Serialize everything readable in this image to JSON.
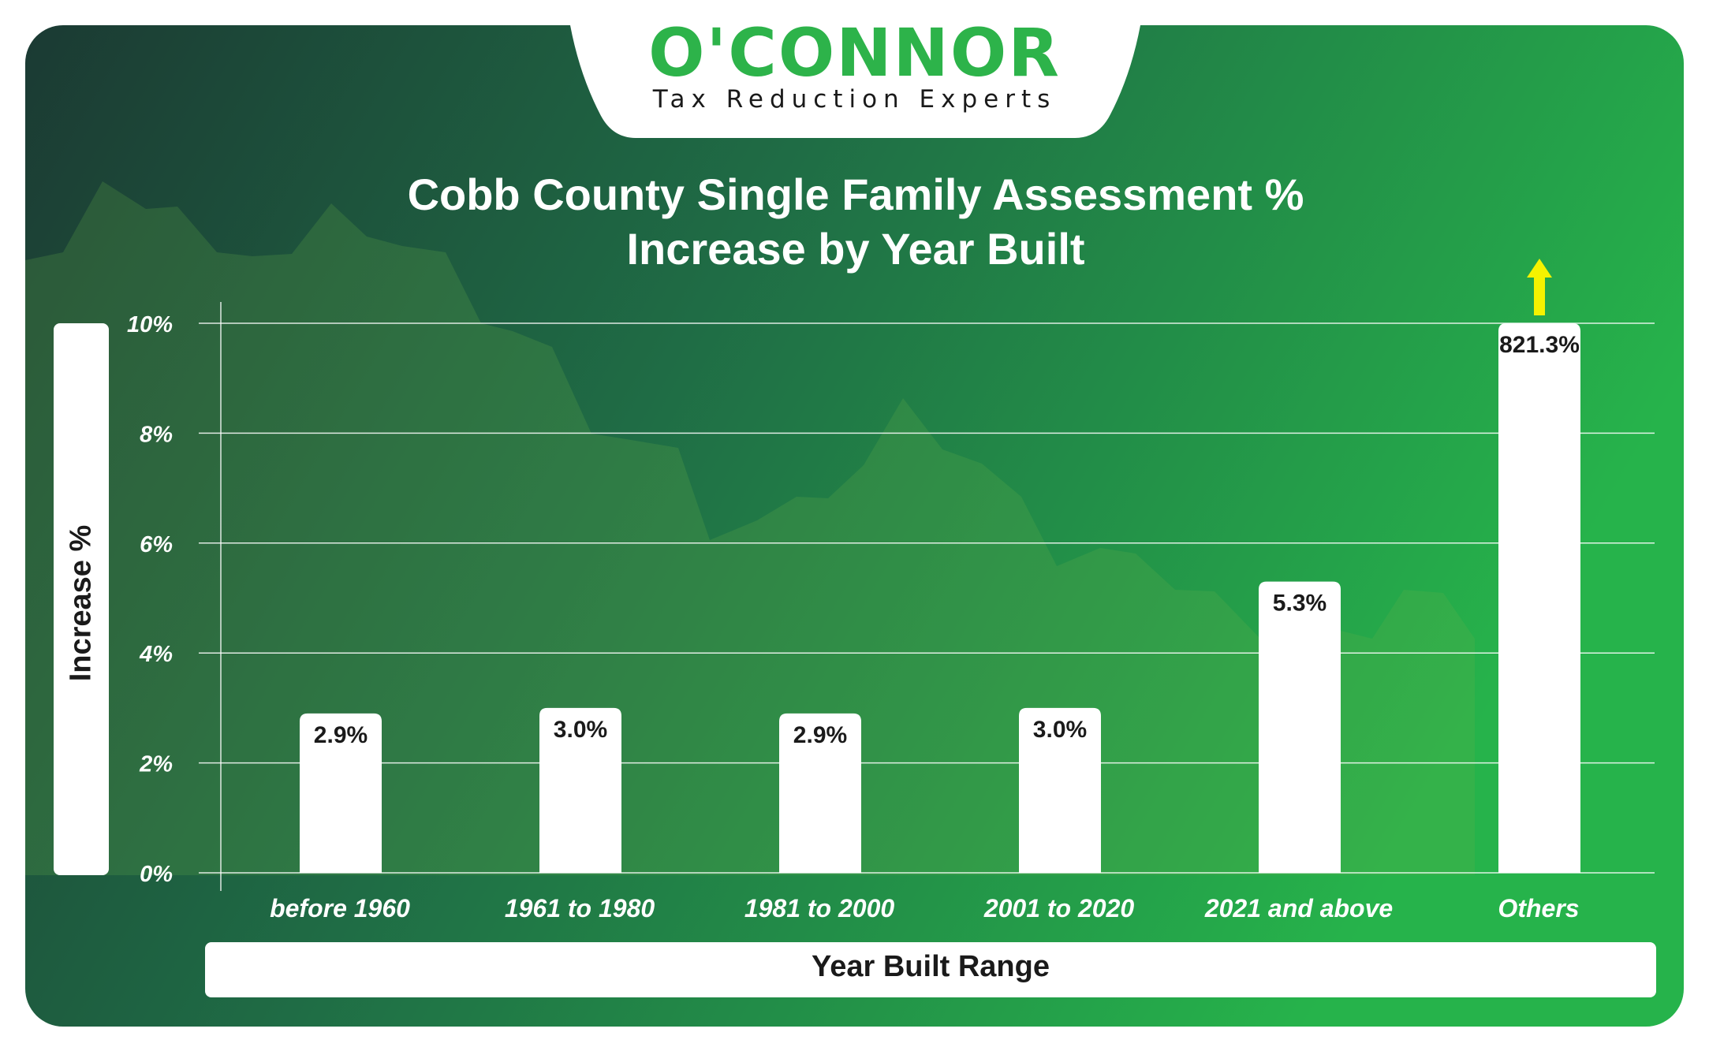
{
  "brand": {
    "name": "O'CONNOR",
    "tagline": "Tax Reduction Experts",
    "colors": {
      "brand_green": "#2db34a",
      "panel_dark": "#1b3a33",
      "panel_light": "#25b04a",
      "arrow": "#f5f200"
    }
  },
  "chart_data": {
    "type": "bar",
    "title_lines": [
      "Cobb County Single Family Assessment %",
      "Increase by Year Built"
    ],
    "xlabel": "Year Built Range",
    "ylabel": "Increase %",
    "ylim": [
      0,
      10
    ],
    "yticks": [
      "0%",
      "2%",
      "4%",
      "6%",
      "8%",
      "10%"
    ],
    "grid": true,
    "categories": [
      "before 1960",
      "1961 to 1980",
      "1981 to 2000",
      "2001 to 2020",
      "2021 and above",
      "Others"
    ],
    "values": [
      2.9,
      3.0,
      2.9,
      3.0,
      5.3,
      821.3
    ],
    "value_labels": [
      "2.9%",
      "3.0%",
      "2.9%",
      "3.0%",
      "5.3%",
      "821.3%"
    ],
    "clipped": [
      false,
      false,
      false,
      false,
      false,
      true
    ],
    "bar_color": "#ffffff"
  }
}
